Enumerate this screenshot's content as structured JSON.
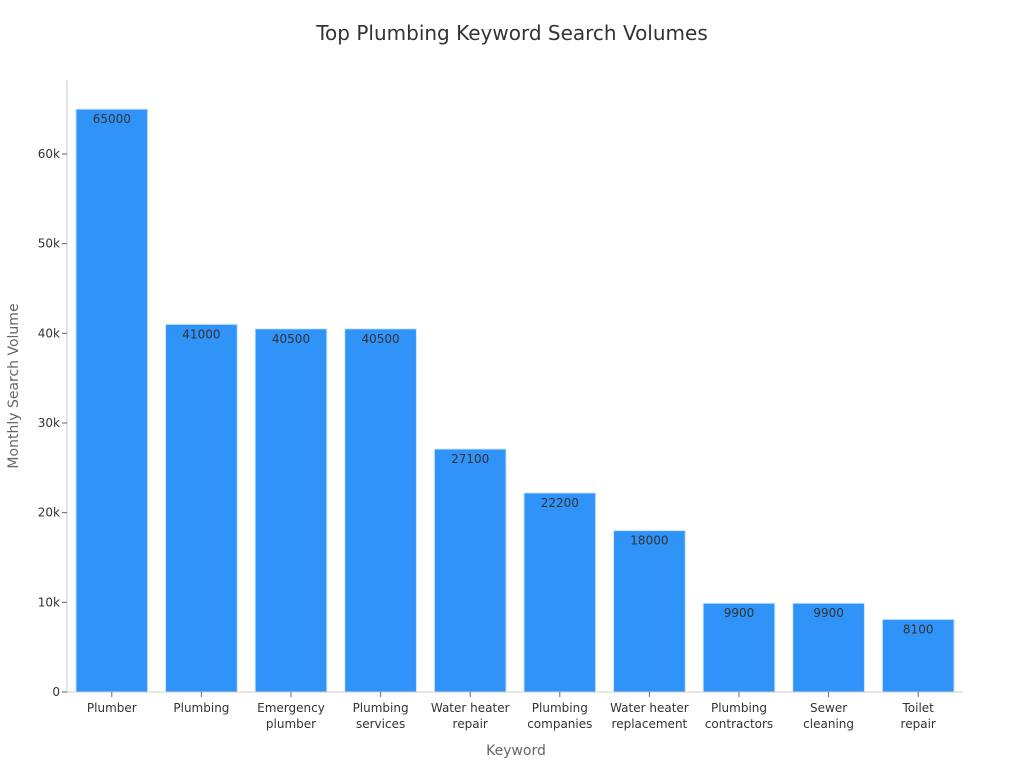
{
  "chart_data": {
    "type": "bar",
    "title": "Top Plumbing Keyword Search Volumes",
    "xlabel": "Keyword",
    "ylabel": "Monthly Search Volume",
    "categories": [
      [
        "Plumber"
      ],
      [
        "Plumbing"
      ],
      [
        "Emergency",
        "plumber"
      ],
      [
        "Plumbing",
        "services"
      ],
      [
        "Water heater",
        "repair"
      ],
      [
        "Plumbing",
        "companies"
      ],
      [
        "Water heater",
        "replacement"
      ],
      [
        "Plumbing",
        "contractors"
      ],
      [
        "Sewer",
        "cleaning"
      ],
      [
        "Toilet",
        "repair"
      ]
    ],
    "values": [
      65000,
      41000,
      40500,
      40500,
      27100,
      22200,
      18000,
      9900,
      9900,
      8100
    ],
    "value_labels": [
      "65000",
      "41000",
      "40500",
      "40500",
      "27100",
      "22200",
      "18000",
      "9900",
      "9900",
      "8100"
    ],
    "ylim": [
      0,
      68250
    ],
    "yticks": [
      0,
      10000,
      20000,
      30000,
      40000,
      50000,
      60000
    ],
    "ytick_labels": [
      "0",
      "10k",
      "20k",
      "30k",
      "40k",
      "50k",
      "60k"
    ],
    "bar_color": "#2f93f8",
    "grid": false,
    "legend": "none"
  }
}
